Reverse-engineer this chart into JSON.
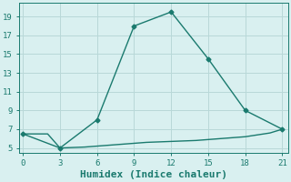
{
  "line1_x": [
    0,
    3,
    6,
    9,
    12,
    15,
    18,
    21
  ],
  "line1_y": [
    6.5,
    5.0,
    8.0,
    18.0,
    19.5,
    14.5,
    9.0,
    7.0
  ],
  "line2_x": [
    0,
    1,
    2,
    3,
    4,
    5,
    6,
    7,
    8,
    9,
    10,
    11,
    12,
    13,
    14,
    15,
    16,
    17,
    18,
    19,
    20,
    21
  ],
  "line2_y": [
    6.5,
    6.5,
    6.5,
    5.0,
    5.05,
    5.1,
    5.2,
    5.3,
    5.4,
    5.5,
    5.6,
    5.65,
    5.7,
    5.75,
    5.8,
    5.9,
    6.0,
    6.1,
    6.2,
    6.4,
    6.6,
    7.0
  ],
  "line_color": "#1a7a6e",
  "marker": "D",
  "marker_size": 2.5,
  "marker_indices1": [
    0,
    3,
    6,
    9,
    12,
    15,
    18,
    21
  ],
  "xlabel": "Humidex (Indice chaleur)",
  "xlabel_fontsize": 8,
  "xticks": [
    0,
    3,
    6,
    9,
    12,
    15,
    18,
    21
  ],
  "yticks": [
    5,
    7,
    9,
    11,
    13,
    15,
    17,
    19
  ],
  "xlim": [
    -0.3,
    21.5
  ],
  "ylim": [
    4.5,
    20.5
  ],
  "bg_color": "#d9f0f0",
  "grid_color": "#b8d8d8",
  "line_width": 1.0,
  "font_family": "monospace"
}
